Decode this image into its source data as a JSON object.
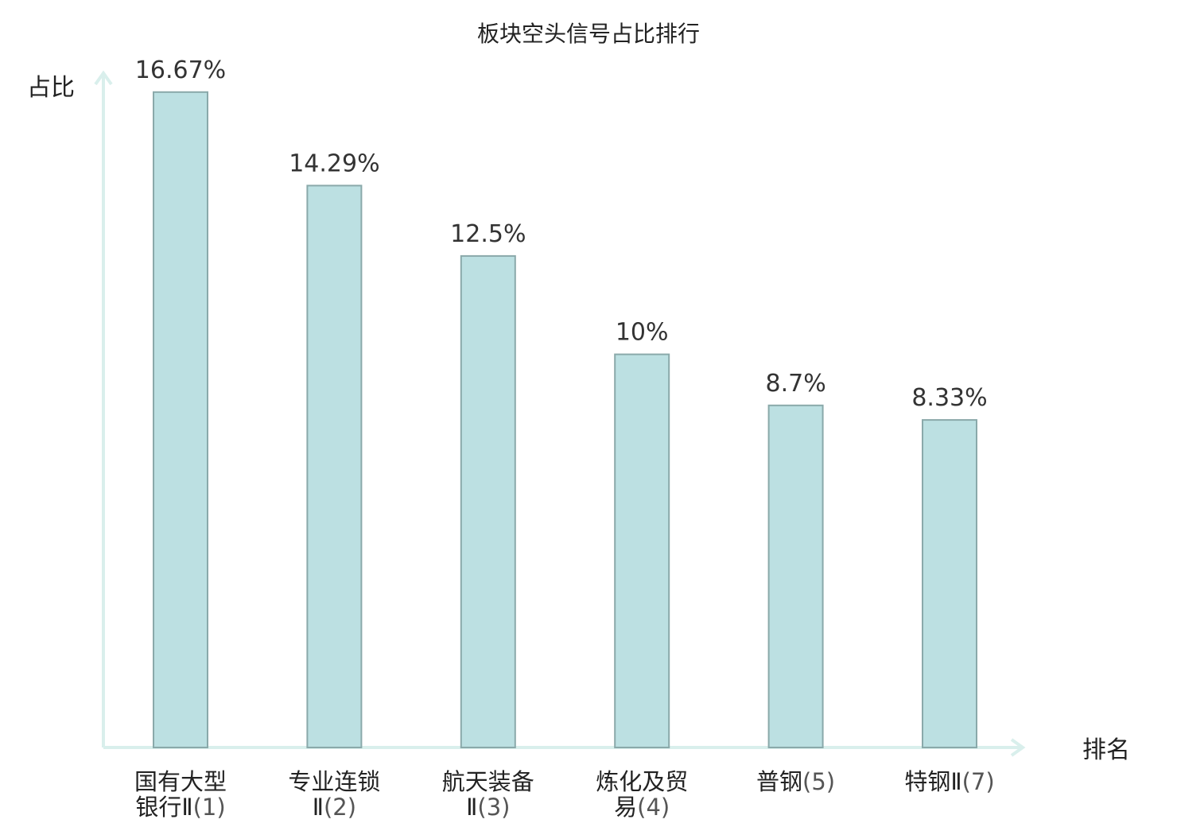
{
  "chart_data": {
    "type": "bar",
    "title": "板块空头信号占比排行",
    "ylabel": "占比",
    "xlabel": "排名",
    "ylim": [
      0,
      18
    ],
    "categories": [
      {
        "name_lines": [
          "国有大型",
          "银行Ⅱ"
        ],
        "rank": "(1)",
        "highlight": false
      },
      {
        "name_lines": [
          "专业连锁",
          "Ⅱ"
        ],
        "rank": "(2)",
        "highlight": false
      },
      {
        "name_lines": [
          "航天装备",
          "Ⅱ"
        ],
        "rank": "(3)",
        "highlight": false
      },
      {
        "name_lines": [
          "炼化及贸",
          "易"
        ],
        "rank": "(4)",
        "highlight": false
      },
      {
        "name_lines": [
          "普钢"
        ],
        "rank": "(5)",
        "highlight": false
      },
      {
        "name_lines": [
          "特钢Ⅱ"
        ],
        "rank": "(7)",
        "highlight": true
      }
    ],
    "values": [
      16.67,
      14.29,
      12.5,
      10,
      8.7,
      8.33
    ],
    "value_labels": [
      "16.67%",
      "14.29%",
      "12.5%",
      "10%",
      "8.7%",
      "8.33%"
    ],
    "grid": false,
    "colors": {
      "bar_fill": "#bce0e2",
      "bar_stroke": "#8aa9aa",
      "axis": "#d9efec",
      "highlight": "#e8221e"
    }
  }
}
